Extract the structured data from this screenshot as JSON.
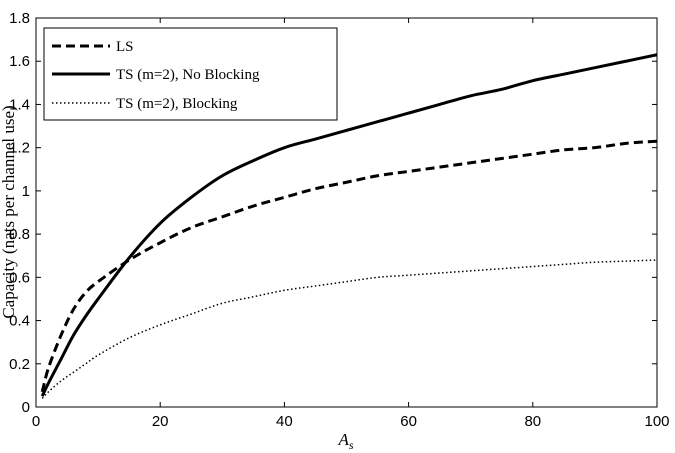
{
  "chart_data": {
    "type": "line",
    "xlabel": "A",
    "xlabel_sub": "s",
    "ylabel": "Capacity (nats per channel use)",
    "xlim": [
      0,
      100
    ],
    "ylim": [
      0,
      1.8
    ],
    "xticks": [
      0,
      20,
      40,
      60,
      80,
      100
    ],
    "xtick_labels": [
      "0",
      "20",
      "40",
      "60",
      "80",
      "100"
    ],
    "yticks": [
      0,
      0.2,
      0.4,
      0.6,
      0.8,
      1,
      1.2,
      1.4,
      1.6,
      1.8
    ],
    "ytick_labels": [
      "0",
      "0.2",
      "0.4",
      "0.6",
      "0.8",
      "1",
      "1.2",
      "1.4",
      "1.6",
      "1.8"
    ],
    "grid": false,
    "legend_position": "top-left",
    "x": [
      1,
      2,
      4,
      6,
      8,
      10,
      15,
      20,
      25,
      30,
      35,
      40,
      45,
      50,
      55,
      60,
      65,
      70,
      75,
      80,
      85,
      90,
      95,
      100
    ],
    "series": [
      {
        "name": "LS",
        "style": "dashed",
        "color": "#000000",
        "values": [
          0.07,
          0.18,
          0.33,
          0.45,
          0.53,
          0.58,
          0.68,
          0.76,
          0.83,
          0.88,
          0.93,
          0.97,
          1.01,
          1.04,
          1.07,
          1.09,
          1.11,
          1.13,
          1.15,
          1.17,
          1.19,
          1.2,
          1.22,
          1.23
        ]
      },
      {
        "name": "TS (m=2), No Blocking",
        "style": "solid",
        "color": "#000000",
        "values": [
          0.05,
          0.11,
          0.22,
          0.33,
          0.42,
          0.5,
          0.69,
          0.85,
          0.97,
          1.07,
          1.14,
          1.2,
          1.24,
          1.28,
          1.32,
          1.36,
          1.4,
          1.44,
          1.47,
          1.51,
          1.54,
          1.57,
          1.6,
          1.63
        ]
      },
      {
        "name": "TS (m=2), Blocking",
        "style": "dotted",
        "color": "#000000",
        "values": [
          0.04,
          0.07,
          0.12,
          0.16,
          0.2,
          0.24,
          0.32,
          0.38,
          0.43,
          0.48,
          0.51,
          0.54,
          0.56,
          0.58,
          0.6,
          0.61,
          0.62,
          0.63,
          0.64,
          0.65,
          0.66,
          0.67,
          0.675,
          0.68
        ]
      }
    ]
  }
}
